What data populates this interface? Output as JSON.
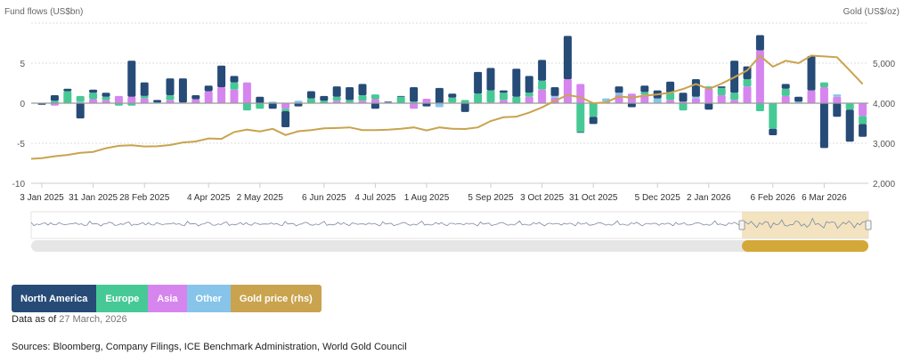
{
  "colors": {
    "north_america": "#264b77",
    "europe": "#47c995",
    "asia": "#d685ef",
    "other": "#86c4ea",
    "gold": "#c9a34e"
  },
  "legend": [
    {
      "label": "North America",
      "color": "#264b77"
    },
    {
      "label": "Europe",
      "color": "#47c995"
    },
    {
      "label": "Asia",
      "color": "#d685ef"
    },
    {
      "label": "Other",
      "color": "#86c4ea"
    },
    {
      "label": "Gold price (rhs)",
      "color": "#c9a34e"
    }
  ],
  "data_as_of_label": "Data as of",
  "data_as_of_value": "27 March, 2026",
  "sources": "Sources: Bloomberg, Company Filings, ICE Benchmark Administration, World Gold Council",
  "chart_data": {
    "type": "bar",
    "stacked": true,
    "ylabel": "Fund flows (US$bn)",
    "y2label": "Gold (US$/oz)",
    "ylim": [
      -10,
      10
    ],
    "y2lim": [
      2000,
      6000
    ],
    "yticks": [
      "5",
      "0",
      "-5",
      "-10"
    ],
    "y2ticks": [
      "5,000",
      "4,000",
      "3,000",
      "2,000"
    ],
    "xticks": [
      {
        "label": "3 Jan 2025",
        "date": "2025-01-03"
      },
      {
        "label": "31 Jan 2025",
        "date": "2025-01-31"
      },
      {
        "label": "28 Feb 2025",
        "date": "2025-02-28"
      },
      {
        "label": "4 Apr 2025",
        "date": "2025-04-04"
      },
      {
        "label": "2 May 2025",
        "date": "2025-05-02"
      },
      {
        "label": "6 Jun 2025",
        "date": "2025-06-06"
      },
      {
        "label": "4 Jul 2025",
        "date": "2025-07-04"
      },
      {
        "label": "1 Aug 2025",
        "date": "2025-08-01"
      },
      {
        "label": "5 Sep 2025",
        "date": "2025-09-05"
      },
      {
        "label": "3 Oct 2025",
        "date": "2025-10-03"
      },
      {
        "label": "31 Oct 2025",
        "date": "2025-10-31"
      },
      {
        "label": "5 Dec 2025",
        "date": "2025-12-05"
      },
      {
        "label": "2 Jan 2026",
        "date": "2026-01-02"
      },
      {
        "label": "6 Feb 2026",
        "date": "2026-02-06"
      },
      {
        "label": "6 Mar 2026",
        "date": "2026-03-06"
      }
    ],
    "grid": true,
    "legend_position": "bottom-left",
    "x": [
      "2025-01-03",
      "2025-01-10",
      "2025-01-17",
      "2025-01-24",
      "2025-01-31",
      "2025-02-07",
      "2025-02-14",
      "2025-02-21",
      "2025-02-28",
      "2025-03-07",
      "2025-03-14",
      "2025-03-21",
      "2025-03-28",
      "2025-04-04",
      "2025-04-11",
      "2025-04-18",
      "2025-04-25",
      "2025-05-02",
      "2025-05-09",
      "2025-05-16",
      "2025-05-23",
      "2025-05-30",
      "2025-06-06",
      "2025-06-13",
      "2025-06-20",
      "2025-06-27",
      "2025-07-04",
      "2025-07-11",
      "2025-07-18",
      "2025-07-25",
      "2025-08-01",
      "2025-08-08",
      "2025-08-15",
      "2025-08-22",
      "2025-08-29",
      "2025-09-05",
      "2025-09-12",
      "2025-09-19",
      "2025-09-26",
      "2025-10-03",
      "2025-10-10",
      "2025-10-17",
      "2025-10-24",
      "2025-10-31",
      "2025-11-07",
      "2025-11-14",
      "2025-11-21",
      "2025-11-28",
      "2025-12-05",
      "2025-12-12",
      "2025-12-19",
      "2025-12-26",
      "2026-01-02",
      "2026-01-09",
      "2026-01-16",
      "2026-01-23",
      "2026-01-30",
      "2026-02-06",
      "2026-02-13",
      "2026-02-20",
      "2026-02-27",
      "2026-03-06",
      "2026-03-13",
      "2026-03-20",
      "2026-03-27"
    ],
    "series": [
      {
        "name": "North America",
        "key": "north_america",
        "values": [
          -0.2,
          0.7,
          0.3,
          -1.9,
          0.4,
          0.5,
          0,
          4.5,
          1.7,
          0.3,
          2.1,
          3.0,
          0.5,
          0.7,
          2.7,
          0.8,
          0,
          0.8,
          -0.7,
          -2.0,
          -0.4,
          0.9,
          0.6,
          1.3,
          1.6,
          1.4,
          -0.7,
          0.1,
          0.1,
          1.8,
          -0.4,
          1.9,
          0.5,
          -1.1,
          2.7,
          2.8,
          0.3,
          3.5,
          2.1,
          2.6,
          1.1,
          5.4,
          -0.1,
          -0.9,
          0,
          0.8,
          -0.5,
          0.8,
          1.0,
          1.4,
          1.1,
          2.2,
          -0.8,
          0.2,
          4.0,
          1.6,
          1.9,
          -0.8,
          0.6,
          0.6,
          4.3,
          -5.6,
          -1.7,
          -4.0,
          -1.6
        ]
      },
      {
        "name": "Europe",
        "key": "europe",
        "values": [
          0,
          0.3,
          1.5,
          0.7,
          0.8,
          0.4,
          -0.3,
          -0.3,
          0.3,
          0.1,
          0.6,
          0,
          0,
          0,
          0,
          0.9,
          -0.9,
          -0.7,
          0,
          -0.3,
          0,
          0.6,
          0.3,
          0.5,
          0.3,
          0.7,
          0.6,
          0,
          0.8,
          0.2,
          0,
          0,
          0.6,
          0.4,
          1.2,
          1.5,
          0.9,
          0.8,
          0.5,
          1.1,
          0,
          0,
          -3.6,
          -1.7,
          0,
          0,
          0,
          0.3,
          0,
          0.9,
          -0.9,
          0,
          0.3,
          0.9,
          0.9,
          0.9,
          -1.0,
          -3.2,
          0.9,
          0,
          0,
          0.6,
          0,
          -0.8,
          -1.0
        ]
      },
      {
        "name": "Asia",
        "key": "asia",
        "values": [
          0,
          -0.3,
          0,
          0,
          0.5,
          0.4,
          0.9,
          0.8,
          0.6,
          0,
          0.4,
          0.1,
          0.5,
          1.5,
          2.0,
          1.7,
          2.6,
          0,
          0,
          -0.7,
          0,
          0,
          0,
          0.3,
          0.1,
          0.3,
          0.5,
          0.1,
          0,
          -0.7,
          0.55,
          0,
          0,
          0,
          0,
          0.1,
          0.4,
          0,
          0.8,
          1.7,
          0.7,
          3.0,
          2.4,
          0,
          0.2,
          1.0,
          1.2,
          1.1,
          0,
          0.4,
          0.2,
          0.6,
          1.8,
          1.0,
          0.4,
          2.1,
          6.6,
          0,
          0.9,
          0,
          1.6,
          2.0,
          0.8,
          0,
          -1.6
        ]
      },
      {
        "name": "Other",
        "key": "other",
        "values": [
          0,
          0,
          0,
          0.2,
          0,
          0,
          0,
          0,
          0,
          0,
          0,
          0,
          0,
          0,
          0,
          0,
          0,
          0,
          0.2,
          0,
          0.3,
          0,
          0,
          0,
          0,
          0,
          0,
          0,
          0,
          0,
          0,
          -0.5,
          0.1,
          0,
          0,
          0,
          0,
          0,
          0,
          0,
          0.2,
          0,
          0,
          0,
          0.4,
          0.3,
          0,
          0,
          0.6,
          0,
          0,
          0.2,
          0,
          0,
          0,
          0,
          0,
          0,
          0,
          0.2,
          0,
          0,
          0.3,
          0,
          0
        ]
      },
      {
        "name": "Gold price (rhs)",
        "key": "gold",
        "type": "line",
        "axis": "right",
        "values": [
          2630,
          2675,
          2710,
          2760,
          2785,
          2875,
          2935,
          2950,
          2920,
          2925,
          2955,
          3020,
          3045,
          3120,
          3110,
          3280,
          3340,
          3295,
          3360,
          3205,
          3300,
          3330,
          3370,
          3380,
          3395,
          3330,
          3330,
          3340,
          3360,
          3395,
          3320,
          3395,
          3360,
          3355,
          3395,
          3555,
          3650,
          3665,
          3765,
          3895,
          4060,
          4205,
          4150,
          4000,
          4020,
          4170,
          4135,
          4190,
          4220,
          4265,
          4355,
          4480,
          4355,
          4490,
          4650,
          4820,
          5185,
          4910,
          5060,
          5000,
          5190,
          5170,
          5150,
          4815,
          4480
        ]
      }
    ]
  }
}
